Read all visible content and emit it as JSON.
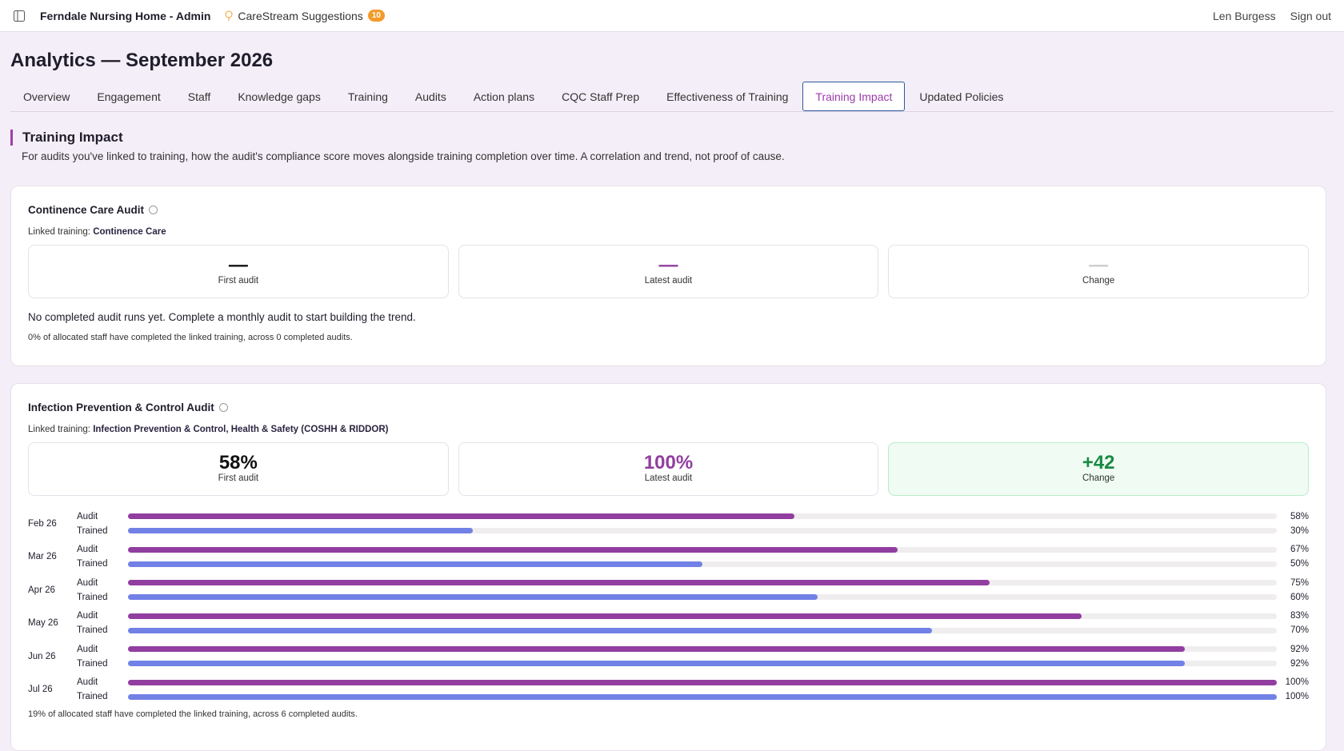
{
  "header": {
    "app": "Ferndale Nursing Home - Admin",
    "suggestions": "CareStream Suggestions",
    "suggestions_count": 10,
    "user": "Len Burgess",
    "sign_out": "Sign out"
  },
  "page": {
    "title": "Analytics — September 2026",
    "tabs": [
      "Overview",
      "Engagement",
      "Staff",
      "Knowledge gaps",
      "Training",
      "Audits",
      "Action plans",
      "CQC Staff Prep",
      "Effectiveness of Training",
      "Training Impact",
      "Updated Policies"
    ],
    "active_tab": 9
  },
  "section": {
    "title": "Training Impact",
    "description": "For audits you've linked to training, how the audit's compliance score moves alongside training completion over time. A correlation and trend, not proof of cause."
  },
  "cards": [
    {
      "title": "Continence Care Audit",
      "linked_label": "Linked training:",
      "linked": "Continence Care",
      "stats": [
        {
          "value": "—",
          "label": "First audit"
        },
        {
          "value": "—",
          "label": "Latest audit"
        },
        {
          "value": "—",
          "label": "Change"
        }
      ],
      "empty": "No completed audit runs yet. Complete a monthly audit to start building the trend.",
      "footer": "0% of allocated staff have completed the linked training, across 0 completed audits."
    },
    {
      "title": "Infection Prevention & Control Audit",
      "linked_label": "Linked training:",
      "linked": "Infection Prevention & Control, Health & Safety (COSHH & RIDDOR)",
      "stats": [
        {
          "value": "58%",
          "label": "First audit"
        },
        {
          "value": "100%",
          "label": "Latest audit"
        },
        {
          "value": "+42",
          "label": "Change"
        }
      ],
      "series": [
        "Audit",
        "Trained"
      ],
      "rows": [
        {
          "month": "Feb 26",
          "values": [
            58,
            30
          ],
          "value_labels": [
            "58%",
            "30%"
          ]
        },
        {
          "month": "Mar 26",
          "values": [
            67,
            50
          ],
          "value_labels": [
            "67%",
            "50%"
          ]
        },
        {
          "month": "Apr 26",
          "values": [
            75,
            60
          ],
          "value_labels": [
            "75%",
            "60%"
          ]
        },
        {
          "month": "May 26",
          "values": [
            83,
            70
          ],
          "value_labels": [
            "83%",
            "70%"
          ]
        },
        {
          "month": "Jun 26",
          "values": [
            92,
            92
          ],
          "value_labels": [
            "92%",
            "92%"
          ]
        },
        {
          "month": "Jul 26",
          "values": [
            100,
            100
          ],
          "value_labels": [
            "100%",
            "100%"
          ]
        }
      ],
      "footer": "19% of allocated staff have completed the linked training, across 6 completed audits."
    }
  ]
}
